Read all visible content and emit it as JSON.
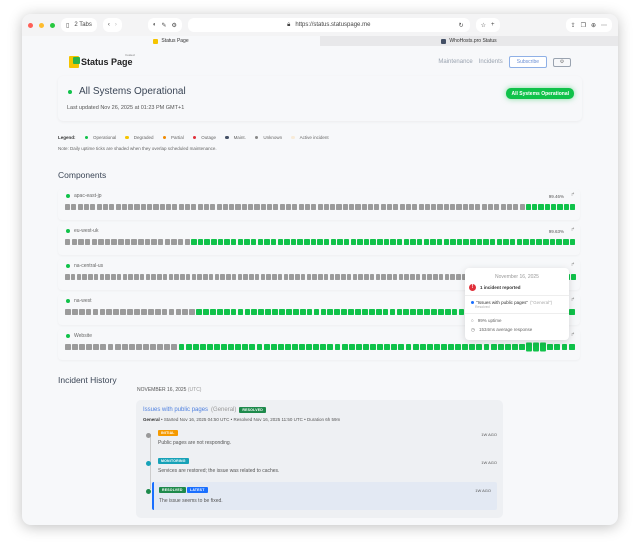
{
  "browser": {
    "tabs_count": "2 Tabs",
    "url": "https://status.statuspage.me",
    "tabs": [
      {
        "label": "Status Page",
        "active": true,
        "icon_color": "#f5c400"
      },
      {
        "label": "WhoHosts.pro Status",
        "active": false,
        "icon_color": "#445066"
      }
    ]
  },
  "header": {
    "logo_text": "Status Page",
    "logo_sub": "hosted",
    "nav": [
      "Maintenance",
      "Incidents"
    ],
    "subscribe": "Subscribe",
    "settings_icon": "gear-icon"
  },
  "hero": {
    "title": "All Systems Operational",
    "updated": "Last updated Nov 26, 2025 at 01:23 PM GMT+1",
    "badge": "All Systems Operational"
  },
  "legend": {
    "label": "Legend:",
    "items": [
      {
        "label": "Operational",
        "color": "#10c24a"
      },
      {
        "label": "Degraded",
        "color": "#f5c400"
      },
      {
        "label": "Partial",
        "color": "#f08a00"
      },
      {
        "label": "Outage",
        "color": "#e0303a"
      },
      {
        "label": "Maint.",
        "color": "#445066"
      },
      {
        "label": "Unknown",
        "color": "#888888"
      },
      {
        "label": "Active incident",
        "color": "#f8ebd8"
      }
    ],
    "note": "Note: Daily uptime ticks are shaded when they overlap scheduled maintenance."
  },
  "components_title": "Components",
  "components": [
    {
      "name": "apac-east-jp",
      "uptime": "99.46%",
      "ticks": "uuuuuuuuuuuuuuuuuuuuuuuuuuuuuuuuuuuuuuuuuuuuuuuuuuuuuuuuuuuuuuuuuuuuuuuuuopoopopoppopppoop"
    },
    {
      "name": "eu-west-uk",
      "uptime": "99.63%",
      "ticks": "uuuuuuuuuuuuuuuuuuuoooopopooopoopooooooopoooooopoooooopoooopoooooooopoopooopoooopooopoopooo"
    },
    {
      "name": "na-central-us",
      "uptime": "",
      "ticks": "uuuuuuuuuuuuuuuuuuuuuuuuuuuuuuuuuuuuuuuuuuuuuuuuuuuuuuuuuuuuuuuuuuuuuuuuuuuuuuuuuuuuuuuoo"
    },
    {
      "name": "na-west",
      "uptime": "",
      "ticks": "uuuuuuuuuuuuuuuuuuuooooppoopopopoooopoopooooppooooooopoooooooopopooooopooopoooopoooopoopooo"
    },
    {
      "name": "Website",
      "uptime": "",
      "ticks": "uuuuuuuuuuuuuuuuooppooopooopopoopooopooopoooooopooooopooooooooopooooopooooooopppooopopoppopo"
    }
  ],
  "tooltip": {
    "date": "November 16, 2025",
    "summary": "1 incident reported",
    "incident": "\"Issues with public pages\"",
    "incident_group": "(\"General\")",
    "incident_status": "Resolved",
    "uptime": "99% uptime",
    "response": "1534ms average response"
  },
  "history": {
    "title": "Incident History",
    "date": "NOVEMBER 16, 2025",
    "tz": "(UTC)",
    "incident": {
      "title": "Issues with public pages",
      "group": "(General)",
      "status": "RESOLVED",
      "meta_group": "General",
      "meta": " • Started Nov 16, 2025 04:50 UTC • Resolved Nov 16, 2025 11:50 UTC • Duration 6h 59m",
      "updates": [
        {
          "tag": "INITIAL",
          "tag_color": "#f59a00",
          "dot": "#999999",
          "msg": "Public pages are not responding.",
          "ago": "1W AGO"
        },
        {
          "tag": "MONITORING",
          "tag_color": "#17a2b8",
          "dot": "#17a2b8",
          "msg": "Services are restored; the issue was related to caches.",
          "ago": "1W AGO"
        },
        {
          "tag": "RESOLVED",
          "tag2": "LATEST",
          "tag_color": "#1e8a4c",
          "dot": "#1e8a4c",
          "msg": "The issue seems to be fixed.",
          "ago": "1W AGO"
        }
      ]
    }
  }
}
